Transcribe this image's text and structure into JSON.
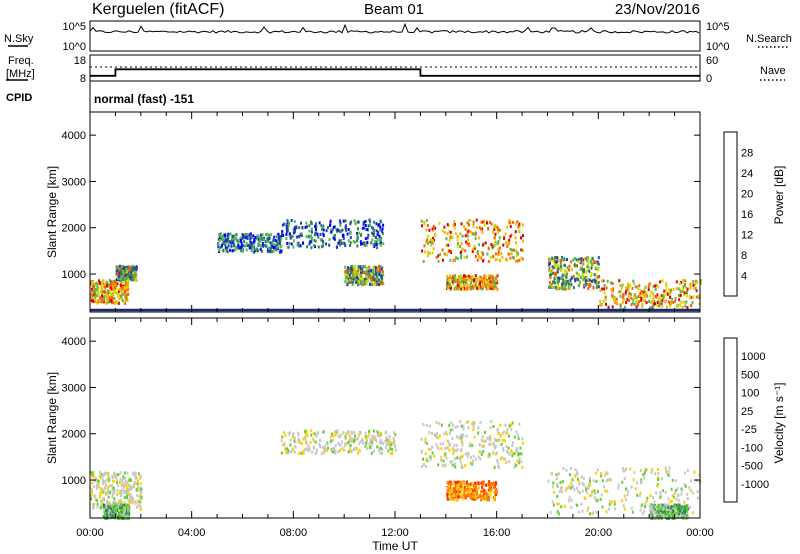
{
  "header": {
    "station": "Kerguelen (fitACF)",
    "beam": "Beam 01",
    "date": "23/Nov/2016"
  },
  "top_panels": {
    "nsky_label": "N.Sky",
    "nsky_ticks": [
      "10^5",
      "10^0"
    ],
    "nsearch_label": "N.Search",
    "nsearch_ticks": [
      "10^5",
      "10^0"
    ],
    "freq_label_1": "Freq.",
    "freq_label_2": "[MHz]",
    "freq_ticks": [
      "18",
      "8"
    ],
    "nave_label": "Nave",
    "nave_ticks": [
      "60",
      "0"
    ],
    "cpid_label": "CPID",
    "cpid_text": "normal (fast) -151",
    "freq_step": {
      "start_mhz": 10,
      "step_hour": 1.0,
      "high_mhz": 12.5,
      "drop_hour": 13.0,
      "end_mhz": 10
    }
  },
  "chart_data": [
    {
      "type": "heatmap",
      "panel": "power",
      "xlabel": "Time UT",
      "ylabel": "Slant Range [km]",
      "xlim": [
        0,
        24
      ],
      "ylim": [
        180,
        4500
      ],
      "x_tick_labels": [
        "00:00",
        "04:00",
        "08:00",
        "12:00",
        "16:00",
        "20:00",
        "00:00"
      ],
      "y_tick_labels": [
        "1000",
        "2000",
        "3000",
        "4000"
      ],
      "y_tick_values": [
        1000,
        2000,
        3000,
        4000
      ],
      "colorbar": {
        "label": "Power [dB]",
        "ticks": [
          "28",
          "24",
          "20",
          "16",
          "12",
          "8",
          "4"
        ],
        "colors": [
          "#e00000",
          "#ff6000",
          "#ffb000",
          "#c8e000",
          "#58b858",
          "#2e7f5e",
          "#1e40b0",
          "#0000ff"
        ]
      },
      "regions": [
        {
          "t": [
            0.0,
            1.5
          ],
          "r": [
            400,
            900
          ],
          "level": "high"
        },
        {
          "t": [
            1.0,
            1.8
          ],
          "r": [
            900,
            1200
          ],
          "level": "mid"
        },
        {
          "t": [
            5.0,
            7.5
          ],
          "r": [
            1500,
            1900
          ],
          "level": "low"
        },
        {
          "t": [
            7.5,
            11.5
          ],
          "r": [
            1600,
            2200
          ],
          "level": "low"
        },
        {
          "t": [
            10.0,
            11.5
          ],
          "r": [
            800,
            1200
          ],
          "level": "mid"
        },
        {
          "t": [
            13.0,
            17.0
          ],
          "r": [
            1300,
            2200
          ],
          "level": "high"
        },
        {
          "t": [
            14.0,
            16.0
          ],
          "r": [
            700,
            1000
          ],
          "level": "high"
        },
        {
          "t": [
            18.0,
            20.0
          ],
          "r": [
            700,
            1400
          ],
          "level": "mid"
        },
        {
          "t": [
            20.0,
            24.0
          ],
          "r": [
            300,
            900
          ],
          "level": "high"
        }
      ]
    },
    {
      "type": "heatmap",
      "panel": "velocity",
      "xlabel": "Time UT",
      "ylabel": "Slant Range [km]",
      "xlim": [
        0,
        24
      ],
      "ylim": [
        180,
        4500
      ],
      "x_tick_labels": [
        "00:00",
        "04:00",
        "08:00",
        "12:00",
        "16:00",
        "20:00",
        "00:00"
      ],
      "y_tick_labels": [
        "1000",
        "2000",
        "3000",
        "4000"
      ],
      "y_tick_values": [
        1000,
        2000,
        3000,
        4000
      ],
      "colorbar": {
        "label": "Velocity [m s⁻¹]",
        "ticks": [
          "1000",
          "500",
          "100",
          "25",
          "-25",
          "-100",
          "-500",
          "-1000"
        ],
        "colors": [
          "#2030c0",
          "#2b6e9e",
          "#2f8a4e",
          "#60d030",
          "#c8c8c8",
          "#ffd000",
          "#ff8000",
          "#ff3000",
          "#e00000"
        ]
      },
      "regions": [
        {
          "t": [
            0.0,
            2.0
          ],
          "r": [
            400,
            1200
          ],
          "level": "gray"
        },
        {
          "t": [
            0.5,
            1.5
          ],
          "r": [
            200,
            500
          ],
          "level": "green"
        },
        {
          "t": [
            7.5,
            12.0
          ],
          "r": [
            1600,
            2100
          ],
          "level": "gray"
        },
        {
          "t": [
            13.0,
            17.0
          ],
          "r": [
            1300,
            2300
          ],
          "level": "gray"
        },
        {
          "t": [
            14.0,
            16.0
          ],
          "r": [
            600,
            1000
          ],
          "level": "orange"
        },
        {
          "t": [
            18.0,
            24.0
          ],
          "r": [
            300,
            1300
          ],
          "level": "gray"
        },
        {
          "t": [
            22.0,
            23.5
          ],
          "r": [
            200,
            500
          ],
          "level": "green"
        }
      ]
    }
  ]
}
